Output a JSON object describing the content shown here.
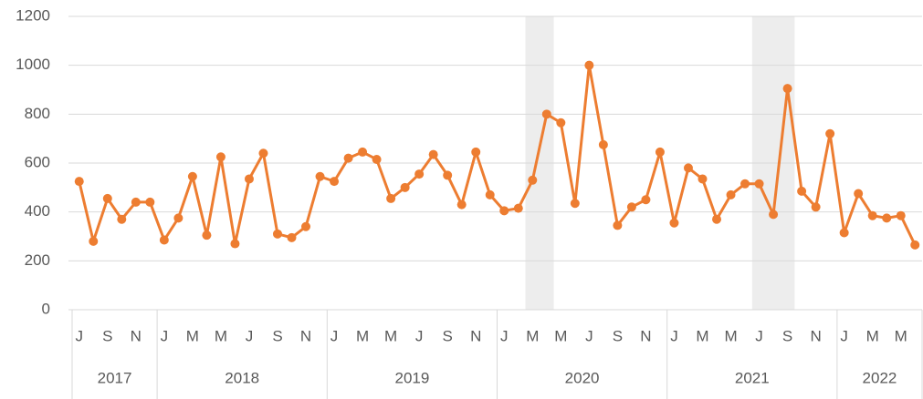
{
  "chart_data": {
    "type": "line",
    "categories": [
      "J",
      null,
      "S",
      null,
      "N",
      null,
      "J",
      null,
      "M",
      null,
      "M",
      null,
      "J",
      null,
      "S",
      null,
      "N",
      null,
      "J",
      null,
      "M",
      null,
      "M",
      null,
      "J",
      null,
      "S",
      null,
      "N",
      null,
      "J",
      null,
      "M",
      null,
      "M",
      null,
      "J",
      null,
      "S",
      null,
      "N",
      null,
      "J",
      null,
      "M",
      null,
      "M",
      null,
      "J",
      null,
      "S",
      null,
      "N",
      null,
      "J",
      null,
      "M",
      null,
      "M",
      null
    ],
    "year_groups": [
      {
        "label": "2017",
        "count": 6
      },
      {
        "label": "2018",
        "count": 12
      },
      {
        "label": "2019",
        "count": 12
      },
      {
        "label": "2020",
        "count": 12
      },
      {
        "label": "2021",
        "count": 12
      },
      {
        "label": "2022",
        "count": 6
      }
    ],
    "series": [
      {
        "color": "#ed7d31",
        "values": [
          525,
          280,
          455,
          370,
          440,
          440,
          285,
          375,
          545,
          305,
          625,
          270,
          535,
          640,
          310,
          295,
          340,
          545,
          525,
          620,
          645,
          615,
          455,
          500,
          555,
          635,
          550,
          430,
          645,
          470,
          405,
          415,
          530,
          800,
          765,
          435,
          1000,
          675,
          345,
          420,
          450,
          645,
          355,
          580,
          535,
          370,
          470,
          515,
          515,
          390,
          905,
          485,
          420,
          720,
          315,
          475,
          385,
          375,
          385,
          265
        ]
      }
    ],
    "shaded_ranges": [
      [
        32,
        33
      ],
      [
        48,
        50
      ]
    ],
    "shade_color": "#ededed",
    "ylim": [
      0,
      1200
    ],
    "yticks": [
      0,
      200,
      400,
      600,
      800,
      1000,
      1200
    ],
    "grid": true
  }
}
